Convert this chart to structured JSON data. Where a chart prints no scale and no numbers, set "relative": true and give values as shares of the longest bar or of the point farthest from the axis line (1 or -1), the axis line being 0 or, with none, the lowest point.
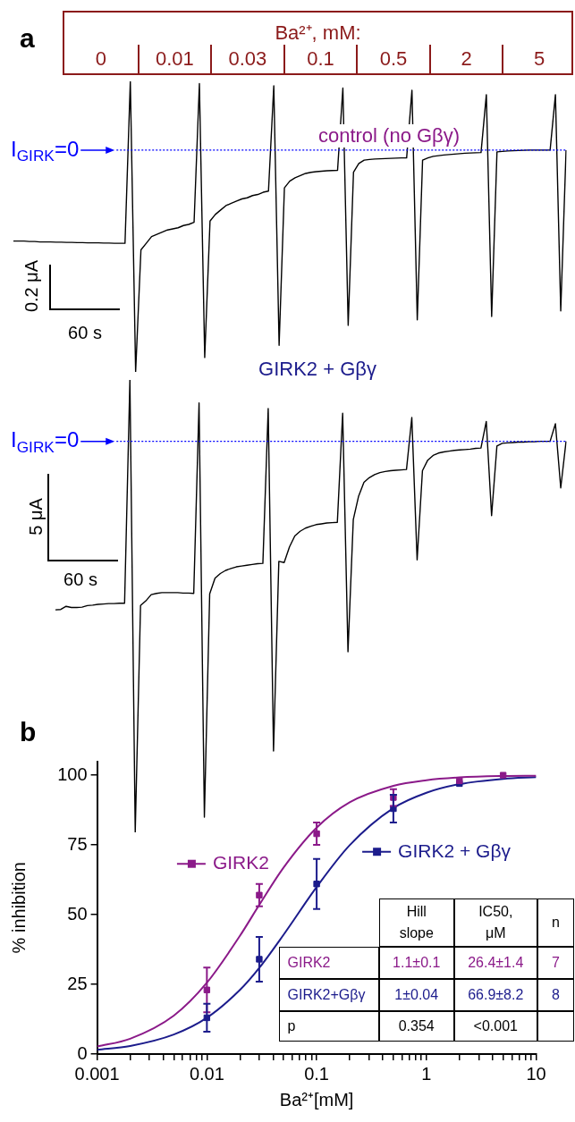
{
  "chart_data": [
    {
      "type": "other",
      "title": "Ba²⁺, mM:",
      "categories": [
        "0",
        "0.01",
        "0.03",
        "0.1",
        "0.5",
        "2",
        "5"
      ],
      "color": "#8b1a1a",
      "annotations": [
        "a"
      ]
    },
    {
      "type": "line",
      "title": "control (no Gβγ)",
      "relative": true,
      "tick_labels": false,
      "categories": [
        null,
        null,
        null,
        null,
        null,
        null,
        null,
        null,
        null,
        null,
        null,
        null,
        null,
        null,
        null,
        null,
        null,
        null,
        null,
        null,
        null,
        null,
        null,
        null,
        null,
        null,
        null,
        null,
        null,
        null,
        null,
        null,
        null,
        null,
        null,
        null,
        null,
        null,
        null,
        null,
        null,
        null,
        null,
        null,
        null,
        null,
        null,
        null,
        null,
        null,
        null,
        null,
        null,
        null,
        null,
        null,
        null,
        null,
        null,
        null,
        null,
        null,
        null,
        null,
        null,
        null,
        null,
        null,
        null,
        null,
        null,
        null,
        null,
        null,
        null,
        null,
        null,
        null,
        null,
        null,
        null,
        null,
        null,
        null,
        null,
        null,
        null,
        null,
        null,
        null,
        null,
        null,
        null,
        null,
        null,
        null,
        null,
        null,
        null,
        null,
        null,
        null,
        null,
        null,
        null
      ],
      "series": [
        {
          "color": "#000000",
          "values": [
            -0.41,
            -0.41,
            -0.41,
            -0.412,
            -0.412,
            -0.414,
            -0.414,
            -0.414,
            -0.415,
            -0.415,
            -0.416,
            -0.416,
            -0.417,
            -0.417,
            -0.418,
            -0.418,
            -0.418,
            -0.419,
            -0.419,
            -0.42,
            -0.42,
            -0.42,
            0.31,
            -1,
            -0.45,
            -0.42,
            -0.39,
            -0.38,
            -0.37,
            -0.36,
            -0.355,
            -0.35,
            -0.34,
            -0.335,
            -0.325,
            0.3,
            -0.935,
            -0.32,
            -0.29,
            -0.27,
            -0.25,
            -0.24,
            -0.23,
            -0.22,
            -0.215,
            -0.205,
            -0.2,
            -0.19,
            -0.185,
            0.29,
            -0.88,
            -0.17,
            -0.14,
            -0.125,
            -0.115,
            -0.105,
            -0.1,
            -0.097,
            -0.095,
            -0.093,
            -0.092,
            -0.091,
            0.28,
            -0.79,
            -0.1,
            -0.06,
            -0.045,
            -0.042,
            -0.04,
            -0.039,
            -0.038,
            -0.037,
            -0.036,
            -0.035,
            -0.035,
            0.27,
            -0.765,
            -0.045,
            -0.035,
            -0.028,
            -0.025,
            -0.022,
            -0.02,
            -0.018,
            -0.016,
            -0.014,
            -0.013,
            -0.012,
            -0.011,
            0.25,
            -0.75,
            -0.008,
            -0.006,
            -0.004,
            -0.003,
            -0.002,
            -0.001,
            0,
            0,
            0,
            0,
            0,
            0.25,
            -0.725,
            0
          ]
        }
      ],
      "ref_lines": [
        {
          "axis": "y",
          "value": 0,
          "label": "I$_{GIRK}$=0",
          "color": "#0000ff",
          "line_style": "dotted"
        }
      ],
      "annotations": [
        "0.2 μA",
        "60 s"
      ]
    },
    {
      "type": "line",
      "title": "GIRK2 + Gβγ",
      "relative": true,
      "tick_labels": false,
      "categories": [
        null,
        null,
        null,
        null,
        null,
        null,
        null,
        null,
        null,
        null,
        null,
        null,
        null,
        null,
        null,
        null,
        null,
        null,
        null,
        null,
        null,
        null,
        null,
        null,
        null,
        null,
        null,
        null,
        null,
        null,
        null,
        null,
        null,
        null,
        null,
        null,
        null,
        null,
        null,
        null,
        null,
        null,
        null,
        null,
        null,
        null,
        null,
        null,
        null,
        null,
        null,
        null,
        null,
        null,
        null,
        null,
        null,
        null,
        null,
        null,
        null,
        null,
        null,
        null,
        null,
        null,
        null,
        null,
        null,
        null,
        null,
        null,
        null,
        null,
        null,
        null,
        null,
        null,
        null,
        null,
        null,
        null,
        null,
        null,
        null,
        null,
        null,
        null,
        null,
        null,
        null,
        null,
        null,
        null,
        null,
        null,
        null
      ],
      "series": [
        {
          "color": "#000000",
          "values": [
            -0.431,
            -0.43,
            -0.422,
            -0.425,
            -0.425,
            -0.424,
            -0.42,
            -0.419,
            -0.417,
            -0.416,
            -0.415,
            -0.415,
            -0.414,
            -0.414,
            0.157,
            -1,
            -0.42,
            -0.408,
            -0.392,
            -0.389,
            -0.387,
            -0.387,
            -0.387,
            -0.387,
            -0.388,
            -0.388,
            -0.389,
            0.098,
            -0.961,
            -0.39,
            -0.35,
            -0.338,
            -0.33,
            -0.325,
            -0.321,
            -0.319,
            -0.317,
            -0.315,
            -0.313,
            -0.312,
            0.084,
            -0.792,
            -0.307,
            -0.31,
            -0.27,
            -0.242,
            -0.23,
            -0.222,
            -0.217,
            -0.213,
            -0.211,
            -0.209,
            -0.208,
            -0.207,
            0.072,
            -0.538,
            -0.2,
            -0.14,
            -0.105,
            -0.093,
            -0.085,
            -0.08,
            -0.077,
            -0.075,
            -0.074,
            -0.073,
            -0.072,
            0.061,
            -0.303,
            -0.075,
            -0.048,
            -0.036,
            -0.03,
            -0.027,
            -0.025,
            -0.023,
            -0.022,
            -0.021,
            -0.02,
            -0.018,
            -0.017,
            0.051,
            -0.19,
            -0.012,
            -0.005,
            -0.004,
            -0.003,
            -0.002,
            -0.002,
            -0.001,
            -0.001,
            0,
            0,
            0,
            0.045,
            -0.119,
            0
          ]
        }
      ],
      "ref_lines": [
        {
          "axis": "y",
          "value": 0,
          "label": "I$_{GIRK}$=0",
          "color": "#0000ff",
          "line_style": "dotted"
        }
      ],
      "annotations": [
        "5 μA",
        "60 s"
      ]
    },
    {
      "type": "scatter",
      "title": "b",
      "xlabel": "Ba²⁺[mM]",
      "ylabel": "% inhibition",
      "log": "x",
      "legend": "top",
      "xlim": [
        0.001,
        10
      ],
      "xticks": [
        0.001,
        {
          "value": 0.002,
          "label": null
        },
        {
          "value": 0.003,
          "label": null
        },
        {
          "value": 0.004,
          "label": null
        },
        {
          "value": 0.005,
          "label": null
        },
        {
          "value": 0.006,
          "label": null
        },
        {
          "value": 0.007,
          "label": null
        },
        {
          "value": 0.008,
          "label": null
        },
        {
          "value": 0.009,
          "label": null
        },
        0.01,
        {
          "value": 0.02,
          "label": null
        },
        {
          "value": 0.03,
          "label": null
        },
        {
          "value": 0.04,
          "label": null
        },
        {
          "value": 0.05,
          "label": null
        },
        {
          "value": 0.06,
          "label": null
        },
        {
          "value": 0.07,
          "label": null
        },
        {
          "value": 0.08,
          "label": null
        },
        {
          "value": 0.09,
          "label": null
        },
        0.1,
        {
          "value": 0.2,
          "label": null
        },
        {
          "value": 0.3,
          "label": null
        },
        {
          "value": 0.4,
          "label": null
        },
        {
          "value": 0.5,
          "label": null
        },
        {
          "value": 0.6,
          "label": null
        },
        {
          "value": 0.7,
          "label": null
        },
        {
          "value": 0.8,
          "label": null
        },
        {
          "value": 0.9,
          "label": null
        },
        1,
        {
          "value": 2,
          "label": null
        },
        {
          "value": 3,
          "label": null
        },
        {
          "value": 4,
          "label": null
        },
        {
          "value": 5,
          "label": null
        },
        {
          "value": 6,
          "label": null
        },
        {
          "value": 7,
          "label": null
        },
        {
          "value": 8,
          "label": null
        },
        {
          "value": 9,
          "label": null
        },
        10
      ],
      "ylim": [
        0,
        105
      ],
      "yticks": [
        0,
        25,
        50,
        75,
        100
      ],
      "series": [
        {
          "name": "GIRK2",
          "color": "#8b1a89",
          "marker": "square",
          "x": [
            0.01,
            0.03,
            0.1,
            0.5,
            2,
            5
          ],
          "values": [
            23,
            57,
            79,
            92,
            98,
            100
          ],
          "errors": [
            8,
            4,
            4,
            3,
            null,
            null
          ]
        },
        {
          "name": "GIRK2 + Gβγ",
          "color": "#1c1c8c",
          "marker": "square",
          "x": [
            0.01,
            0.03,
            0.1,
            0.5,
            2
          ],
          "values": [
            13,
            34,
            61,
            88,
            97
          ],
          "errors": [
            5,
            8,
            9,
            5,
            null
          ]
        },
        {
          "type": "line",
          "color": "#8b1a89",
          "marker": "none",
          "x": [
            0.001,
            0.002,
            0.005,
            0.01,
            0.02,
            0.03,
            0.05,
            0.1,
            0.2,
            0.5,
            1,
            2,
            5,
            10
          ],
          "values": [
            2.7,
            5.5,
            13.8,
            25.6,
            42.4,
            53.5,
            66.9,
            81.2,
            90.3,
            96.2,
            98.2,
            99.2,
            99.7,
            99.8
          ]
        },
        {
          "type": "line",
          "color": "#1c1c8c",
          "marker": "none",
          "x": [
            0.001,
            0.002,
            0.005,
            0.01,
            0.02,
            0.03,
            0.05,
            0.1,
            0.2,
            0.5,
            1,
            2,
            5,
            10
          ],
          "values": [
            1.5,
            2.9,
            7,
            13,
            23,
            30.9,
            42.8,
            59.9,
            74.9,
            88.2,
            93.7,
            96.8,
            98.7,
            99.3
          ]
        }
      ],
      "annotations": [
        "Hill slope",
        "IC50, μM",
        "n",
        "GIRK2",
        "1.1±0.1",
        "26.4±1.4",
        "7",
        "GIRK2+Gβγ",
        "1±0.04",
        "66.9±8.2",
        "8",
        "p",
        "0.354",
        "<0.001"
      ]
    }
  ]
}
